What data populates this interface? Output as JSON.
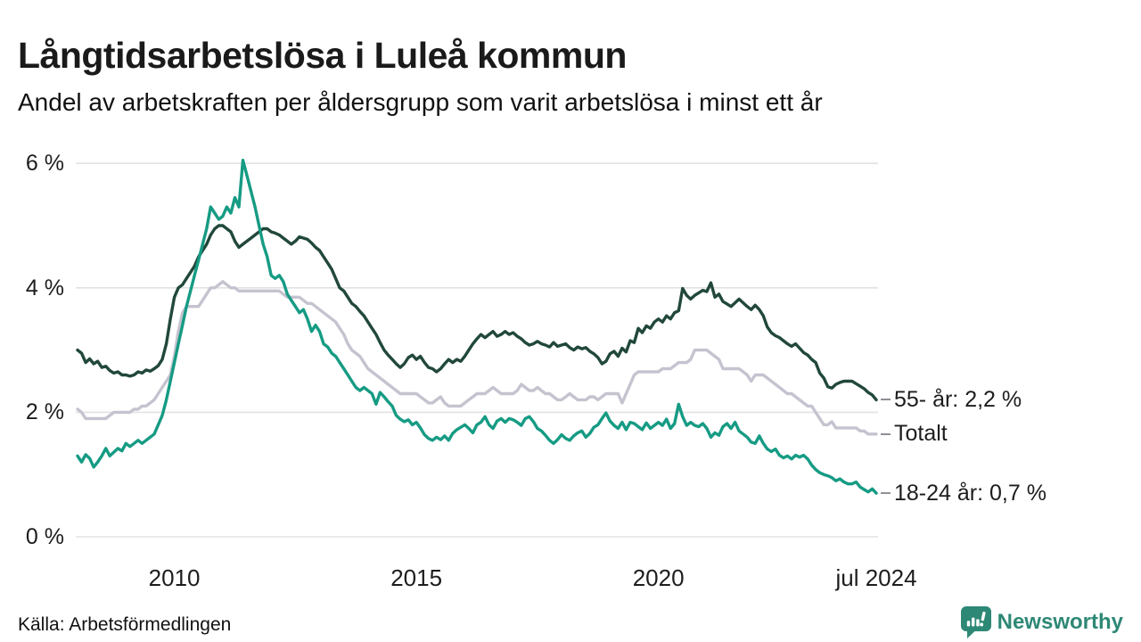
{
  "header": {
    "title": "Långtidsarbetslösa i Luleå kommun",
    "subtitle": "Andel av arbetskraften per åldersgrupp som varit arbetslösa i minst ett år"
  },
  "footer": {
    "source": "Källa: Arbetsförmedlingen",
    "brand": "Newsworthy",
    "brand_color": "#2e8876"
  },
  "chart_data": {
    "type": "line",
    "title": "Långtidsarbetslösa i Luleå kommun",
    "subtitle": "Andel av arbetskraften per åldersgrupp som varit arbetslösa i minst ett år",
    "x_unit": "month",
    "x_start": "2008-01",
    "x_end": "2024-07",
    "ylim": [
      0,
      6.3
    ],
    "grid": "horizontal",
    "gridline_color": "#e2e2e5",
    "legend_position": "right-end-labels",
    "y_ticks": [
      {
        "value": 0,
        "label": "0 %"
      },
      {
        "value": 2,
        "label": "2 %"
      },
      {
        "value": 4,
        "label": "4 %"
      },
      {
        "value": 6,
        "label": "6 %"
      }
    ],
    "x_ticks": [
      {
        "label": "2010",
        "month_index": 24
      },
      {
        "label": "2015",
        "month_index": 84
      },
      {
        "label": "2020",
        "month_index": 144
      },
      {
        "label": "jul 2024",
        "month_index": 198
      }
    ],
    "series": [
      {
        "name": "Totalt",
        "end_label": "Totalt",
        "end_value": 1.65,
        "color": "#c5c3cf",
        "values": [
          2.05,
          2.0,
          1.9,
          1.9,
          1.9,
          1.9,
          1.9,
          1.9,
          1.95,
          2.0,
          2.0,
          2.0,
          2.0,
          2.0,
          2.05,
          2.05,
          2.1,
          2.1,
          2.15,
          2.2,
          2.3,
          2.4,
          2.5,
          2.6,
          2.9,
          3.3,
          3.6,
          3.7,
          3.7,
          3.7,
          3.7,
          3.8,
          3.9,
          4.0,
          4.0,
          4.05,
          4.1,
          4.05,
          4.0,
          4.0,
          3.95,
          3.95,
          3.95,
          3.95,
          3.95,
          3.95,
          3.95,
          3.95,
          3.95,
          3.95,
          3.95,
          3.9,
          3.85,
          3.85,
          3.85,
          3.85,
          3.8,
          3.75,
          3.75,
          3.7,
          3.65,
          3.6,
          3.55,
          3.5,
          3.45,
          3.35,
          3.25,
          3.1,
          3.0,
          2.95,
          2.9,
          2.8,
          2.7,
          2.65,
          2.6,
          2.55,
          2.5,
          2.45,
          2.4,
          2.35,
          2.3,
          2.3,
          2.3,
          2.3,
          2.3,
          2.25,
          2.2,
          2.15,
          2.15,
          2.2,
          2.25,
          2.15,
          2.1,
          2.1,
          2.1,
          2.1,
          2.15,
          2.2,
          2.25,
          2.3,
          2.3,
          2.3,
          2.35,
          2.4,
          2.35,
          2.3,
          2.3,
          2.3,
          2.3,
          2.35,
          2.45,
          2.4,
          2.35,
          2.35,
          2.4,
          2.35,
          2.3,
          2.3,
          2.25,
          2.2,
          2.2,
          2.25,
          2.3,
          2.25,
          2.2,
          2.2,
          2.2,
          2.25,
          2.25,
          2.2,
          2.25,
          2.3,
          2.3,
          2.3,
          2.3,
          2.15,
          2.3,
          2.45,
          2.6,
          2.65,
          2.65,
          2.65,
          2.65,
          2.65,
          2.65,
          2.7,
          2.7,
          2.7,
          2.75,
          2.8,
          2.8,
          2.8,
          2.85,
          3.0,
          3.0,
          3.0,
          3.0,
          2.95,
          2.9,
          2.85,
          2.7,
          2.7,
          2.7,
          2.7,
          2.7,
          2.65,
          2.6,
          2.5,
          2.6,
          2.6,
          2.6,
          2.55,
          2.5,
          2.45,
          2.4,
          2.35,
          2.3,
          2.3,
          2.25,
          2.2,
          2.15,
          2.1,
          2.1,
          2.0,
          1.9,
          1.8,
          1.8,
          1.85,
          1.75,
          1.75,
          1.75,
          1.75,
          1.75,
          1.75,
          1.7,
          1.7,
          1.65,
          1.65,
          1.65
        ]
      },
      {
        "name": "55- år",
        "end_label": "55- år: 2,2 %",
        "end_value": 2.2,
        "color": "#21483b",
        "values": [
          3.0,
          2.95,
          2.8,
          2.86,
          2.78,
          2.82,
          2.72,
          2.74,
          2.67,
          2.63,
          2.65,
          2.6,
          2.6,
          2.58,
          2.6,
          2.65,
          2.63,
          2.68,
          2.66,
          2.7,
          2.75,
          2.85,
          3.1,
          3.5,
          3.85,
          4.0,
          4.05,
          4.15,
          4.25,
          4.35,
          4.5,
          4.6,
          4.7,
          4.85,
          4.95,
          5.0,
          5.0,
          4.95,
          4.9,
          4.75,
          4.65,
          4.7,
          4.75,
          4.8,
          4.85,
          4.9,
          4.95,
          4.95,
          4.9,
          4.88,
          4.85,
          4.8,
          4.75,
          4.7,
          4.75,
          4.82,
          4.8,
          4.78,
          4.72,
          4.65,
          4.6,
          4.5,
          4.4,
          4.3,
          4.15,
          4.0,
          3.95,
          3.85,
          3.75,
          3.7,
          3.62,
          3.55,
          3.45,
          3.35,
          3.25,
          3.12,
          3.0,
          2.92,
          2.85,
          2.78,
          2.72,
          2.78,
          2.88,
          2.92,
          2.85,
          2.9,
          2.8,
          2.72,
          2.7,
          2.65,
          2.7,
          2.78,
          2.85,
          2.8,
          2.85,
          2.82,
          2.9,
          3.0,
          3.1,
          3.18,
          3.25,
          3.2,
          3.25,
          3.3,
          3.22,
          3.25,
          3.3,
          3.25,
          3.28,
          3.22,
          3.18,
          3.12,
          3.08,
          3.1,
          3.14,
          3.1,
          3.08,
          3.05,
          3.12,
          3.06,
          3.08,
          3.1,
          3.04,
          3.0,
          3.05,
          3.02,
          3.04,
          2.98,
          2.94,
          2.88,
          2.78,
          2.82,
          2.94,
          2.98,
          2.9,
          3.03,
          2.97,
          3.15,
          3.12,
          3.35,
          3.28,
          3.39,
          3.35,
          3.45,
          3.5,
          3.45,
          3.55,
          3.5,
          3.6,
          3.63,
          3.99,
          3.88,
          3.82,
          3.88,
          3.92,
          3.96,
          3.94,
          4.08,
          3.85,
          3.9,
          3.78,
          3.74,
          3.7,
          3.76,
          3.82,
          3.76,
          3.7,
          3.65,
          3.72,
          3.65,
          3.55,
          3.37,
          3.28,
          3.23,
          3.2,
          3.15,
          3.1,
          3.06,
          3.1,
          3.03,
          2.96,
          2.92,
          2.85,
          2.8,
          2.63,
          2.55,
          2.41,
          2.39,
          2.45,
          2.48,
          2.5,
          2.5,
          2.5,
          2.46,
          2.42,
          2.38,
          2.32,
          2.28,
          2.2
        ]
      },
      {
        "name": "18-24 år",
        "end_label": "18-24 år: 0,7 %",
        "end_value": 0.7,
        "color": "#169b84",
        "values": [
          1.3,
          1.2,
          1.32,
          1.26,
          1.12,
          1.2,
          1.3,
          1.42,
          1.3,
          1.36,
          1.42,
          1.38,
          1.5,
          1.45,
          1.5,
          1.55,
          1.5,
          1.55,
          1.6,
          1.65,
          1.8,
          1.95,
          2.2,
          2.5,
          2.8,
          3.1,
          3.4,
          3.7,
          3.95,
          4.2,
          4.45,
          4.7,
          4.95,
          5.3,
          5.2,
          5.1,
          5.15,
          5.3,
          5.2,
          5.45,
          5.3,
          6.05,
          5.8,
          5.55,
          5.3,
          5.0,
          4.7,
          4.5,
          4.2,
          4.15,
          4.2,
          4.1,
          3.9,
          3.8,
          3.7,
          3.6,
          3.65,
          3.5,
          3.3,
          3.4,
          3.3,
          3.1,
          3.05,
          2.95,
          2.9,
          2.8,
          2.7,
          2.6,
          2.5,
          2.4,
          2.35,
          2.4,
          2.35,
          2.3,
          2.13,
          2.32,
          2.25,
          2.17,
          2.1,
          1.95,
          1.89,
          1.85,
          1.88,
          1.8,
          1.84,
          1.75,
          1.64,
          1.58,
          1.55,
          1.6,
          1.56,
          1.62,
          1.55,
          1.66,
          1.72,
          1.76,
          1.8,
          1.74,
          1.67,
          1.8,
          1.84,
          1.93,
          1.8,
          1.74,
          1.86,
          1.9,
          1.84,
          1.9,
          1.88,
          1.84,
          1.79,
          1.9,
          1.93,
          1.85,
          1.74,
          1.7,
          1.63,
          1.55,
          1.5,
          1.56,
          1.64,
          1.58,
          1.55,
          1.62,
          1.67,
          1.7,
          1.6,
          1.66,
          1.76,
          1.8,
          1.9,
          1.99,
          1.86,
          1.79,
          1.74,
          1.84,
          1.72,
          1.84,
          1.82,
          1.77,
          1.72,
          1.83,
          1.74,
          1.79,
          1.84,
          1.79,
          1.89,
          1.74,
          1.82,
          2.13,
          1.93,
          1.79,
          1.84,
          1.79,
          1.77,
          1.82,
          1.74,
          1.6,
          1.67,
          1.63,
          1.77,
          1.82,
          1.74,
          1.84,
          1.7,
          1.65,
          1.6,
          1.52,
          1.5,
          1.62,
          1.5,
          1.41,
          1.37,
          1.41,
          1.31,
          1.27,
          1.3,
          1.25,
          1.31,
          1.28,
          1.31,
          1.25,
          1.15,
          1.08,
          1.03,
          1.0,
          0.98,
          0.95,
          0.9,
          0.93,
          0.88,
          0.85,
          0.85,
          0.88,
          0.8,
          0.76,
          0.72,
          0.77,
          0.7
        ]
      }
    ]
  }
}
